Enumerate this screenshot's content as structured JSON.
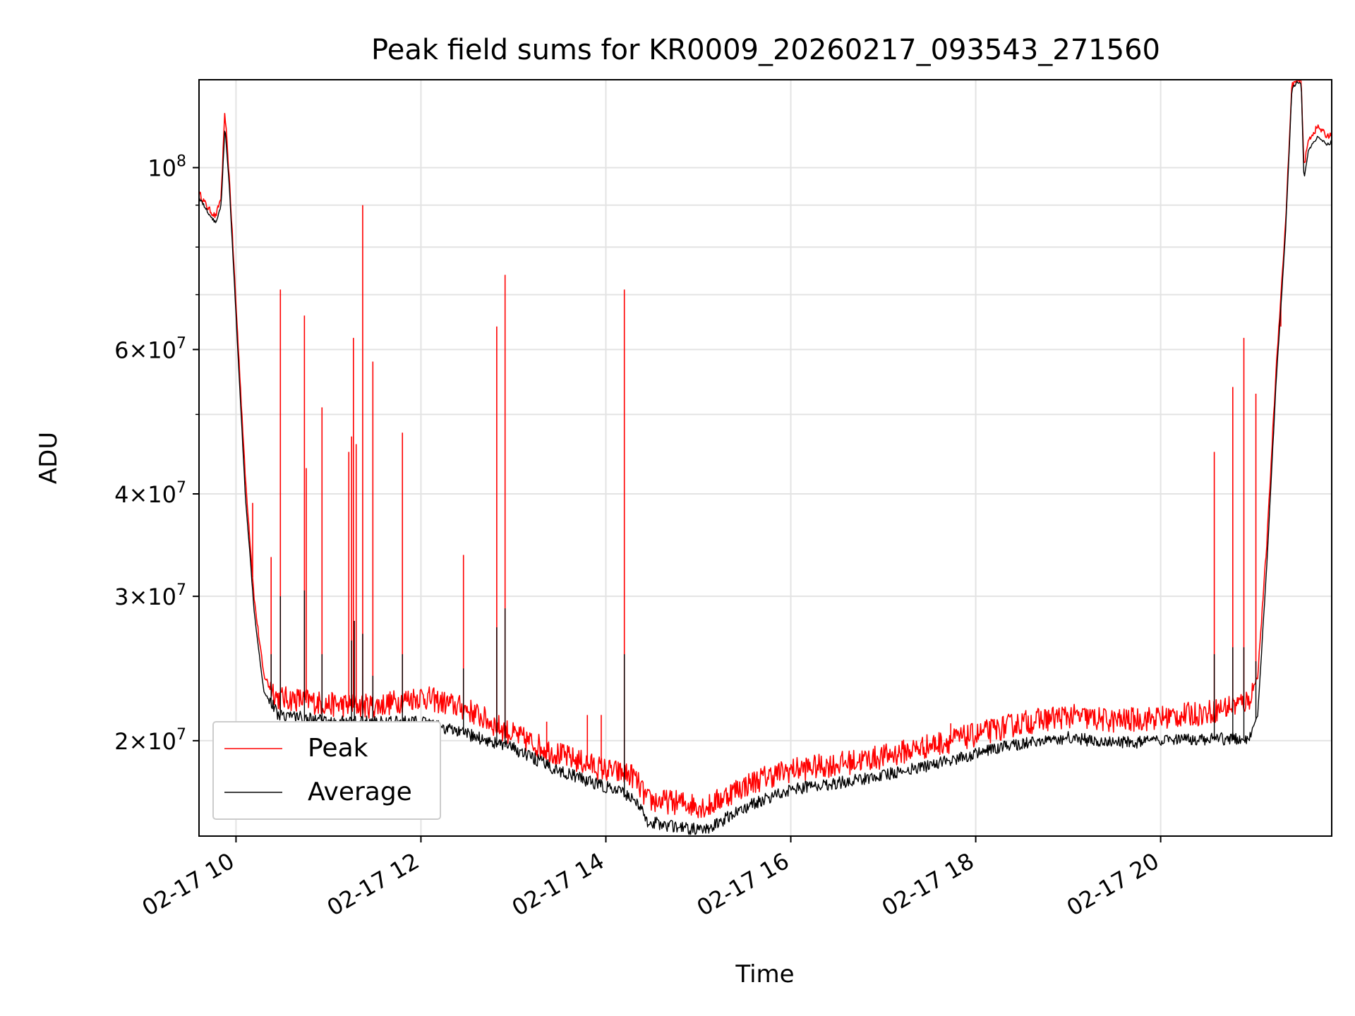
{
  "chart_data": {
    "type": "line",
    "title": "Peak field sums for KR0009_20260217_093543_271560",
    "xlabel": "Time",
    "ylabel": "ADU",
    "yscale": "log",
    "grid": true,
    "legend_position": "lower-left",
    "xlim": [
      9.6,
      21.85
    ],
    "ylim": [
      15300000,
      128000000
    ],
    "x_ticks": [
      10,
      12,
      14,
      16,
      18,
      20
    ],
    "x_tick_labels": [
      "02-17 10",
      "02-17 12",
      "02-17 14",
      "02-17 16",
      "02-17 18",
      "02-17 20"
    ],
    "y_ticks": [
      {
        "value": 20000000,
        "mantissa": "2",
        "exponent": "7"
      },
      {
        "value": 30000000,
        "mantissa": "3",
        "exponent": "7"
      },
      {
        "value": 40000000,
        "mantissa": "4",
        "exponent": "7"
      },
      {
        "value": 60000000,
        "mantissa": "6",
        "exponent": "7"
      },
      {
        "value": 100000000,
        "mantissa": "",
        "exponent": "8"
      }
    ],
    "y_minor_ticks": [
      50000000,
      70000000,
      80000000,
      90000000
    ],
    "series": [
      {
        "name": "Peak",
        "color": "#ff0000",
        "x": [
          9.6,
          9.7,
          9.78,
          9.84,
          9.88,
          9.93,
          10.0,
          10.1,
          10.2,
          10.3,
          10.45,
          10.7,
          11.0,
          11.5,
          12.0,
          12.5,
          13.0,
          13.5,
          14.0,
          14.3,
          14.45,
          14.8,
          15.1,
          15.4,
          15.7,
          16.0,
          16.5,
          17.0,
          17.5,
          18.0,
          18.5,
          19.0,
          19.5,
          20.0,
          20.5,
          20.95,
          21.05,
          21.15,
          21.25,
          21.35,
          21.42,
          21.48,
          21.52,
          21.55,
          21.6,
          21.7,
          21.8,
          21.85
        ],
        "y": [
          93000000,
          89000000,
          87000000,
          92000000,
          117000000,
          96000000,
          68000000,
          42000000,
          29500000,
          24000000,
          22400000,
          22300000,
          22000000,
          21900000,
          22500000,
          21700000,
          20200000,
          19100000,
          18300000,
          18000000,
          16800000,
          16700000,
          16500000,
          17300000,
          17900000,
          18300000,
          18600000,
          19000000,
          19600000,
          20200000,
          20900000,
          21300000,
          21000000,
          21200000,
          21500000,
          22200000,
          24000000,
          35000000,
          57000000,
          85000000,
          126000000,
          127500000,
          127500000,
          100000000,
          108000000,
          112000000,
          109000000,
          110000000
        ],
        "spikes": [
          {
            "x": 10.18,
            "y": 39000000
          },
          {
            "x": 10.38,
            "y": 33500000
          },
          {
            "x": 10.48,
            "y": 71000000
          },
          {
            "x": 10.74,
            "y": 66000000
          },
          {
            "x": 10.76,
            "y": 43000000
          },
          {
            "x": 10.93,
            "y": 51000000
          },
          {
            "x": 11.22,
            "y": 45000000
          },
          {
            "x": 11.25,
            "y": 47000000
          },
          {
            "x": 11.27,
            "y": 62000000
          },
          {
            "x": 11.3,
            "y": 46000000
          },
          {
            "x": 11.37,
            "y": 90000000
          },
          {
            "x": 11.48,
            "y": 58000000
          },
          {
            "x": 11.8,
            "y": 47500000
          },
          {
            "x": 12.46,
            "y": 33700000
          },
          {
            "x": 12.82,
            "y": 64000000
          },
          {
            "x": 12.91,
            "y": 74000000
          },
          {
            "x": 13.36,
            "y": 21100000
          },
          {
            "x": 13.8,
            "y": 21500000
          },
          {
            "x": 13.95,
            "y": 21500000
          },
          {
            "x": 14.2,
            "y": 71000000
          },
          {
            "x": 17.73,
            "y": 21000000
          },
          {
            "x": 20.58,
            "y": 45000000
          },
          {
            "x": 20.78,
            "y": 54000000
          },
          {
            "x": 20.9,
            "y": 62000000
          },
          {
            "x": 21.03,
            "y": 53000000
          },
          {
            "x": 21.3,
            "y": 64000000
          }
        ]
      },
      {
        "name": "Average",
        "color": "#000000",
        "x": [
          9.6,
          9.7,
          9.78,
          9.84,
          9.88,
          9.93,
          10.0,
          10.1,
          10.2,
          10.3,
          10.45,
          10.7,
          11.0,
          11.5,
          12.0,
          12.5,
          13.0,
          13.5,
          14.0,
          14.3,
          14.45,
          14.8,
          15.1,
          15.4,
          15.7,
          16.0,
          16.5,
          17.0,
          17.5,
          18.0,
          18.5,
          19.0,
          19.5,
          20.0,
          20.5,
          20.95,
          21.05,
          21.15,
          21.25,
          21.35,
          21.42,
          21.48,
          21.52,
          21.55,
          21.6,
          21.7,
          21.8,
          21.85
        ],
        "y": [
          92000000,
          88000000,
          85500000,
          90000000,
          112000000,
          94000000,
          66000000,
          40000000,
          28500000,
          23000000,
          21500000,
          21300000,
          21000000,
          21000000,
          21000000,
          20300000,
          19500000,
          18300000,
          17500000,
          17000000,
          15900000,
          15600000,
          15500000,
          16300000,
          16900000,
          17400000,
          17700000,
          18100000,
          18600000,
          19200000,
          19800000,
          20100000,
          19800000,
          19900000,
          20000000,
          20100000,
          21500000,
          33000000,
          55000000,
          83000000,
          125000000,
          127000000,
          127000000,
          97000000,
          105000000,
          109000000,
          106500000,
          107500000
        ],
        "spikes": [
          {
            "x": 10.38,
            "y": 25500000
          },
          {
            "x": 10.48,
            "y": 30000000
          },
          {
            "x": 10.74,
            "y": 30500000
          },
          {
            "x": 10.93,
            "y": 25500000
          },
          {
            "x": 11.25,
            "y": 26500000
          },
          {
            "x": 11.28,
            "y": 28000000
          },
          {
            "x": 11.37,
            "y": 27000000
          },
          {
            "x": 11.48,
            "y": 24000000
          },
          {
            "x": 11.8,
            "y": 25500000
          },
          {
            "x": 12.46,
            "y": 24500000
          },
          {
            "x": 12.82,
            "y": 27500000
          },
          {
            "x": 12.91,
            "y": 29000000
          },
          {
            "x": 14.2,
            "y": 25500000
          },
          {
            "x": 20.58,
            "y": 25500000
          },
          {
            "x": 20.78,
            "y": 26000000
          },
          {
            "x": 20.9,
            "y": 26000000
          },
          {
            "x": 21.03,
            "y": 25000000
          }
        ]
      }
    ]
  }
}
